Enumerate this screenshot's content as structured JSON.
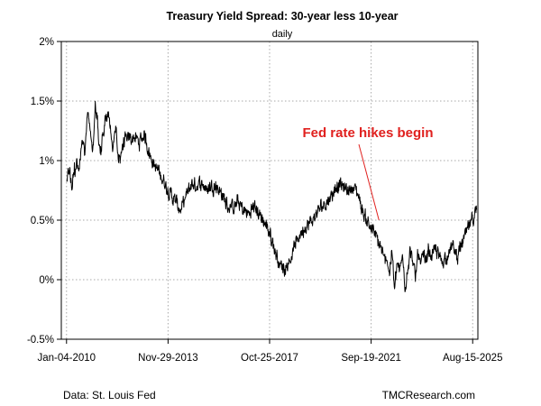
{
  "chart_data": {
    "type": "line",
    "title": "Treasury Yield Spread: 30-year less 10-year",
    "subtitle": "daily",
    "xlabel": "",
    "ylabel": "",
    "ylim": [
      -0.5,
      2.0
    ],
    "xlim": [
      -0.2,
      15.8
    ],
    "grid": true,
    "y_ticks": [
      {
        "value": 2.0,
        "label": "2%"
      },
      {
        "value": 1.5,
        "label": "1.5%"
      },
      {
        "value": 1.0,
        "label": "1%"
      },
      {
        "value": 0.5,
        "label": "0.5%"
      },
      {
        "value": 0.0,
        "label": "0%"
      },
      {
        "value": -0.5,
        "label": "-0.5%"
      }
    ],
    "x_ticks": [
      {
        "value": 0.0,
        "label": "Jan-04-2010"
      },
      {
        "value": 3.9,
        "label": "Nov-29-2013"
      },
      {
        "value": 7.8,
        "label": "Oct-25-2017"
      },
      {
        "value": 11.7,
        "label": "Sep-19-2021"
      },
      {
        "value": 15.6,
        "label": "Aug-15-2025"
      }
    ],
    "series": [
      {
        "name": "30-year less 10-year spread (%)",
        "color": "#000000",
        "x": [
          0.0,
          0.1,
          0.2,
          0.3,
          0.4,
          0.5,
          0.6,
          0.7,
          0.8,
          0.9,
          1.0,
          1.1,
          1.2,
          1.3,
          1.4,
          1.5,
          1.6,
          1.7,
          1.8,
          1.9,
          2.0,
          2.2,
          2.4,
          2.6,
          2.8,
          3.0,
          3.2,
          3.4,
          3.6,
          3.8,
          4.0,
          4.2,
          4.4,
          4.6,
          4.8,
          5.0,
          5.2,
          5.4,
          5.6,
          5.8,
          6.0,
          6.2,
          6.4,
          6.6,
          6.8,
          7.0,
          7.2,
          7.4,
          7.6,
          7.8,
          8.0,
          8.2,
          8.4,
          8.6,
          8.8,
          9.0,
          9.2,
          9.4,
          9.6,
          9.8,
          10.0,
          10.2,
          10.4,
          10.6,
          10.8,
          11.0,
          11.2,
          11.4,
          11.6,
          11.8,
          12.0,
          12.1,
          12.2,
          12.3,
          12.4,
          12.5,
          12.6,
          12.7,
          12.8,
          12.9,
          13.0,
          13.1,
          13.2,
          13.3,
          13.4,
          13.5,
          13.6,
          13.7,
          13.8,
          13.9,
          14.0,
          14.2,
          14.4,
          14.6,
          14.8,
          15.0,
          15.2,
          15.4,
          15.6,
          15.75
        ],
        "values": [
          0.85,
          0.95,
          0.8,
          0.92,
          0.96,
          1.0,
          1.2,
          1.05,
          1.4,
          1.25,
          1.1,
          1.45,
          1.3,
          1.05,
          1.2,
          1.35,
          1.4,
          1.25,
          1.1,
          1.3,
          1.0,
          1.15,
          1.18,
          1.2,
          1.15,
          1.22,
          1.05,
          0.95,
          0.88,
          0.8,
          0.72,
          0.65,
          0.58,
          0.7,
          0.8,
          0.78,
          0.82,
          0.75,
          0.8,
          0.78,
          0.7,
          0.62,
          0.6,
          0.65,
          0.58,
          0.55,
          0.62,
          0.55,
          0.48,
          0.4,
          0.25,
          0.12,
          0.1,
          0.18,
          0.3,
          0.4,
          0.45,
          0.48,
          0.55,
          0.62,
          0.65,
          0.72,
          0.8,
          0.78,
          0.75,
          0.78,
          0.72,
          0.55,
          0.48,
          0.4,
          0.3,
          0.25,
          0.15,
          0.2,
          0.05,
          0.25,
          -0.1,
          0.15,
          0.05,
          0.2,
          -0.05,
          0.1,
          0.25,
          0.15,
          0.0,
          0.25,
          0.1,
          0.2,
          0.15,
          0.25,
          0.2,
          0.25,
          0.15,
          0.2,
          0.28,
          0.2,
          0.3,
          0.42,
          0.5,
          0.58
        ]
      }
    ],
    "annotation": {
      "text": "Fed rate hikes begin",
      "color": "#e0201e",
      "points_to_x": 12.0,
      "points_to_value": 0.5
    }
  },
  "footer": {
    "source": "Data: St. Louis Fed",
    "credit": "TMCResearch.com"
  }
}
